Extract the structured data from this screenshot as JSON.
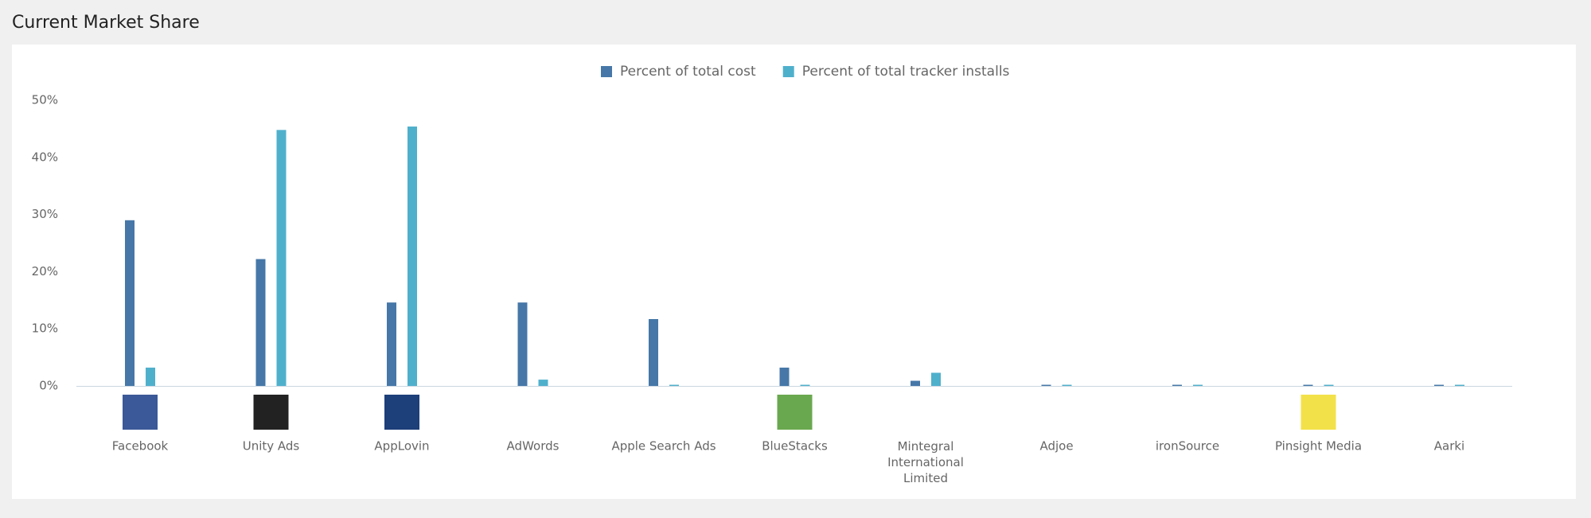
{
  "chart_data": {
    "type": "bar",
    "title": "Current Market Share",
    "categories": [
      "Facebook",
      "Unity Ads",
      "AppLovin",
      "AdWords",
      "Apple Search Ads",
      "BlueStacks",
      "Mintegral International Limited",
      "Adjoe",
      "ironSource",
      "Pinsight Media",
      "Aarki"
    ],
    "series": [
      {
        "name": "Percent of total cost",
        "color": "#4677a8",
        "values": [
          29.0,
          22.2,
          14.6,
          14.6,
          11.7,
          3.2,
          0.9,
          0.2,
          0.2,
          0.2,
          0.2
        ]
      },
      {
        "name": "Percent of total tracker installs",
        "color": "#4fb0cc",
        "values": [
          3.2,
          44.8,
          45.4,
          1.1,
          0.2,
          0.2,
          2.3,
          0.2,
          0.2,
          0.2,
          0.2
        ]
      }
    ],
    "ylim": [
      0,
      50
    ],
    "yticks": [
      {
        "value": 0,
        "label": "0%"
      },
      {
        "value": 10,
        "label": "10%"
      },
      {
        "value": 20,
        "label": "20%"
      },
      {
        "value": 30,
        "label": "30%"
      },
      {
        "value": 40,
        "label": "40%"
      },
      {
        "value": 50,
        "label": "50%"
      }
    ],
    "grid": false,
    "legend": "top"
  }
}
